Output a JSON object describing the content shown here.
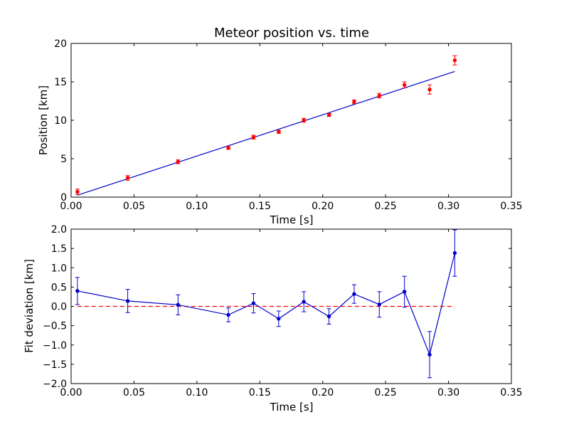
{
  "chart_data": [
    {
      "type": "scatter",
      "title": "Meteor position vs. time",
      "xlabel": "Time [s]",
      "ylabel": "Position [km]",
      "xlim": [
        0,
        0.35
      ],
      "ylim": [
        0,
        20
      ],
      "xticks": [
        0,
        0.05,
        0.1,
        0.15,
        0.2,
        0.25,
        0.3,
        0.35
      ],
      "xtick_labels": [
        "0.00",
        "0.05",
        "0.10",
        "0.15",
        "0.20",
        "0.25",
        "0.30",
        "0.35"
      ],
      "yticks": [
        0,
        5,
        10,
        15,
        20
      ],
      "ytick_labels": [
        "0",
        "5",
        "10",
        "15",
        "20"
      ],
      "grid": false,
      "series": [
        {
          "kind": "errorbar-points",
          "color": "#ff0000",
          "x": [
            0.005,
            0.045,
            0.085,
            0.125,
            0.145,
            0.165,
            0.185,
            0.205,
            0.225,
            0.245,
            0.265,
            0.285,
            0.305
          ],
          "y": [
            0.7,
            2.5,
            4.6,
            6.4,
            7.8,
            8.5,
            10.0,
            10.7,
            12.4,
            13.2,
            14.6,
            14.0,
            17.8
          ],
          "yerr": [
            0.35,
            0.3,
            0.25,
            0.18,
            0.25,
            0.2,
            0.25,
            0.2,
            0.25,
            0.3,
            0.4,
            0.6,
            0.6
          ]
        },
        {
          "kind": "fit-line",
          "color": "#0000cc",
          "x": [
            0.005,
            0.305
          ],
          "y": [
            0.25,
            16.35
          ]
        }
      ]
    },
    {
      "type": "line",
      "xlabel": "Time [s]",
      "ylabel": "Fit deviation [km]",
      "xlim": [
        0,
        0.35
      ],
      "ylim": [
        -2.0,
        2.0
      ],
      "xticks": [
        0,
        0.05,
        0.1,
        0.15,
        0.2,
        0.25,
        0.3,
        0.35
      ],
      "xtick_labels": [
        "0.00",
        "0.05",
        "0.10",
        "0.15",
        "0.20",
        "0.25",
        "0.30",
        "0.35"
      ],
      "yticks": [
        -2.0,
        -1.5,
        -1.0,
        -0.5,
        0.0,
        0.5,
        1.0,
        1.5,
        2.0
      ],
      "ytick_labels": [
        "−2.0",
        "−1.5",
        "−1.0",
        "−0.5",
        "0.0",
        "0.5",
        "1.0",
        "1.5",
        "2.0"
      ],
      "grid": false,
      "series": [
        {
          "kind": "errorbar-line",
          "color": "#0000cc",
          "x": [
            0.005,
            0.045,
            0.085,
            0.125,
            0.145,
            0.165,
            0.185,
            0.205,
            0.225,
            0.245,
            0.265,
            0.285,
            0.305
          ],
          "y": [
            0.4,
            0.14,
            0.04,
            -0.22,
            0.08,
            -0.32,
            0.12,
            -0.26,
            0.32,
            0.05,
            0.38,
            -1.25,
            1.38
          ],
          "yerr": [
            0.35,
            0.3,
            0.26,
            0.18,
            0.25,
            0.2,
            0.26,
            0.2,
            0.24,
            0.33,
            0.4,
            0.6,
            0.6
          ]
        },
        {
          "kind": "reference-line",
          "color": "#ff0000",
          "dashed": true,
          "x": [
            0.005,
            0.305
          ],
          "y": [
            0,
            0
          ]
        }
      ]
    }
  ]
}
